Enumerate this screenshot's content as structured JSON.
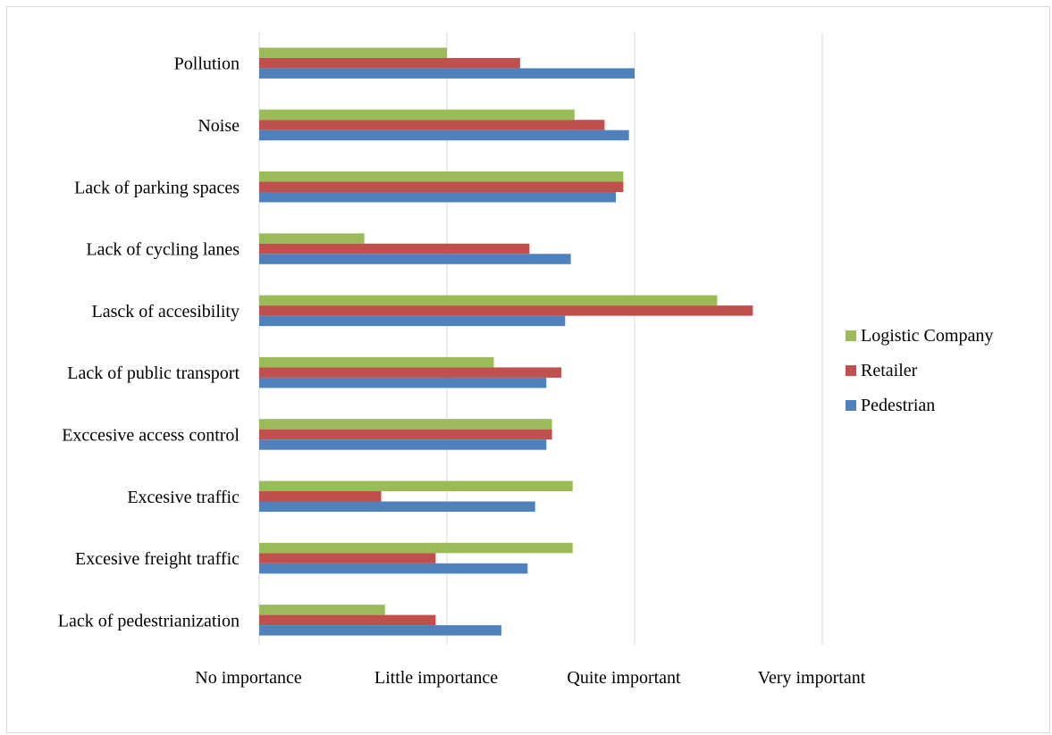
{
  "chart_data": {
    "type": "bar",
    "orientation": "horizontal",
    "categories": [
      "Pollution",
      "Noise",
      "Lack of parking spaces",
      "Lack of cycling lanes",
      "Lasck of accesibility",
      "Lack of public transport",
      "Exccesive access control",
      "Excesive traffic",
      "Excesive freight traffic",
      "Lack of pedestrianization"
    ],
    "series": [
      {
        "name": "Logistic Company",
        "color": "#9bbb59",
        "values": [
          2.0,
          2.68,
          2.94,
          1.56,
          3.44,
          2.25,
          2.56,
          2.67,
          2.67,
          1.67
        ]
      },
      {
        "name": "Retailer",
        "color": "#c0504d",
        "values": [
          2.39,
          2.84,
          2.94,
          2.44,
          3.63,
          2.61,
          2.56,
          1.65,
          1.94,
          1.94
        ]
      },
      {
        "name": "Pedestrian",
        "color": "#4f81bd",
        "values": [
          3.0,
          2.97,
          2.9,
          2.66,
          2.63,
          2.53,
          2.53,
          2.47,
          2.43,
          2.29
        ]
      }
    ],
    "xticks": [
      "No importance",
      "Little importance",
      "Quite important",
      "Very important"
    ],
    "xlim": [
      1,
      4
    ],
    "grid": true,
    "legend_position": "right"
  }
}
